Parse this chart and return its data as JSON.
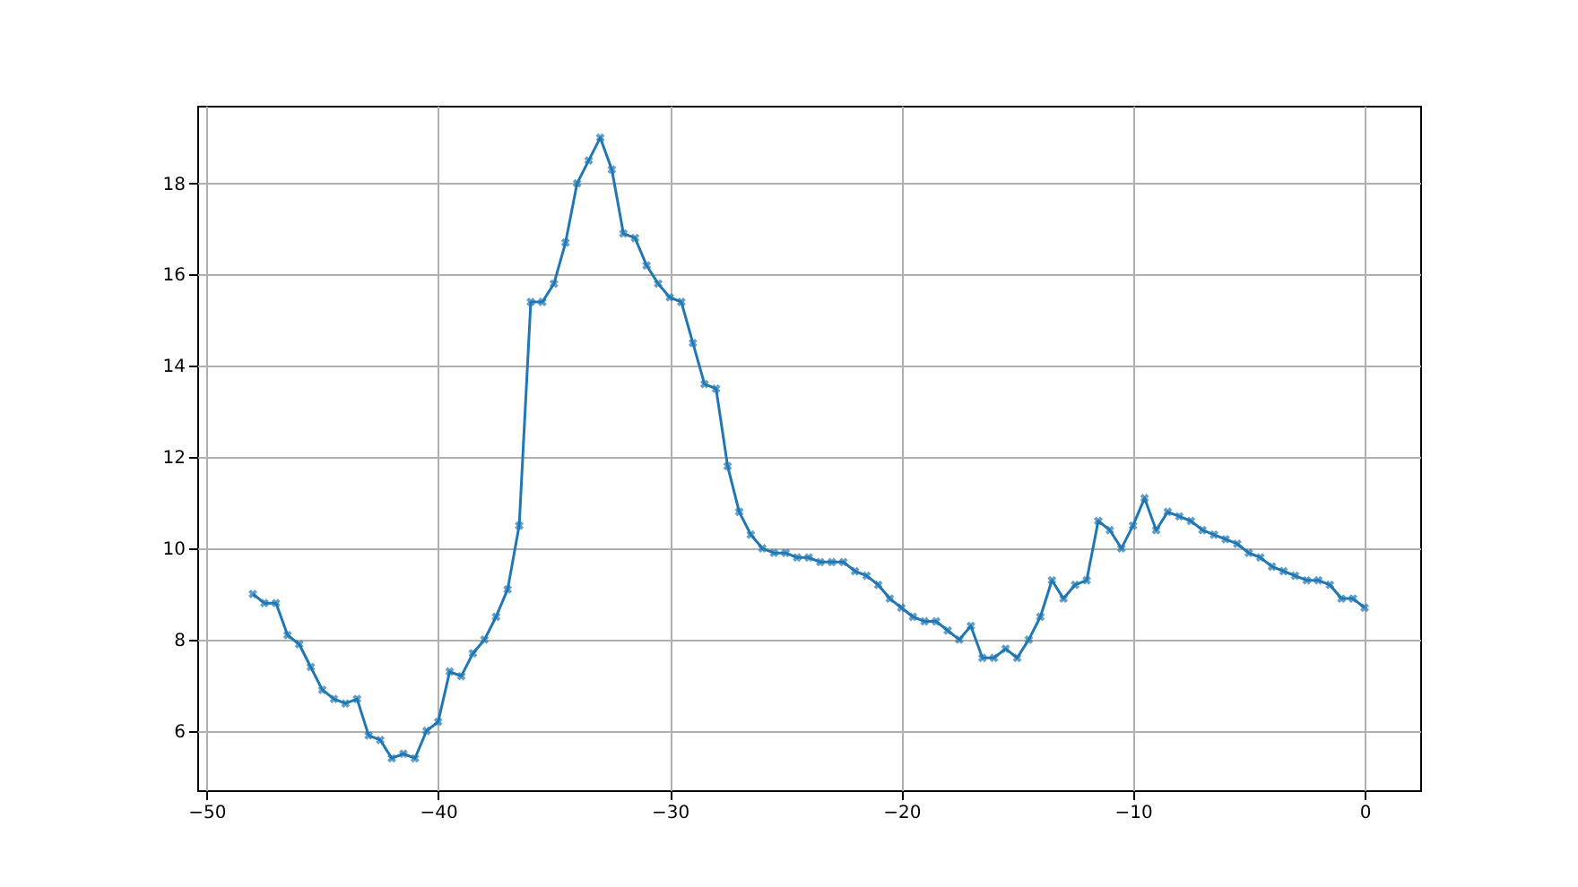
{
  "chart_data": {
    "type": "line",
    "x": [
      -48,
      -47.5,
      -47,
      -46.5,
      -46,
      -45.5,
      -45,
      -44.5,
      -44,
      -43.5,
      -43,
      -42.5,
      -42,
      -41.5,
      -41,
      -40.5,
      -40,
      -39.5,
      -39,
      -38.5,
      -38,
      -37.5,
      -37,
      -36.5,
      -36,
      -35.5,
      -35,
      -34.5,
      -34,
      -33.5,
      -33,
      -32.5,
      -32,
      -31.5,
      -31,
      -30.5,
      -30,
      -29.5,
      -29,
      -28.5,
      -28,
      -27.5,
      -27,
      -26.5,
      -26,
      -25.5,
      -25,
      -24.5,
      -24,
      -23.5,
      -23,
      -22.5,
      -22,
      -21.5,
      -21,
      -20.5,
      -20,
      -19.5,
      -19,
      -18.5,
      -18,
      -17.5,
      -17,
      -16.5,
      -16,
      -15.5,
      -15,
      -14.5,
      -14,
      -13.5,
      -13,
      -12.5,
      -12,
      -11.5,
      -11,
      -10.5,
      -10,
      -9.5,
      -9,
      -8.5,
      -8,
      -7.5,
      -7,
      -6.5,
      -6,
      -5.5,
      -5,
      -4.5,
      -4,
      -3.5,
      -3,
      -2.5,
      -2,
      -1.5,
      -1,
      -0.5,
      0
    ],
    "series": [
      {
        "color": "#1f77b4",
        "values": [
          9.0,
          8.8,
          8.8,
          8.1,
          7.9,
          7.4,
          6.9,
          6.7,
          6.6,
          6.7,
          5.9,
          5.8,
          5.4,
          5.5,
          5.4,
          6.0,
          6.2,
          7.3,
          7.2,
          7.7,
          8.0,
          8.5,
          9.1,
          10.5,
          15.4,
          15.4,
          15.8,
          16.7,
          18.0,
          18.5,
          19.0,
          18.3,
          16.9,
          16.8,
          16.2,
          15.8,
          15.5,
          15.4,
          14.5,
          13.6,
          13.5,
          11.8,
          10.8,
          10.3,
          10.0,
          9.9,
          9.9,
          9.8,
          9.8,
          9.7,
          9.7,
          9.7,
          9.5,
          9.4,
          9.2,
          8.9,
          8.7,
          8.5,
          8.4,
          8.4,
          8.2,
          8.0,
          8.3,
          7.6,
          7.6,
          7.8,
          7.6,
          8.0,
          8.5,
          9.3,
          8.9,
          9.2,
          9.3,
          10.6,
          10.4,
          10.0,
          10.5,
          11.1,
          10.4,
          10.8,
          10.7,
          10.6,
          10.4,
          10.3,
          10.2,
          10.1,
          9.9,
          9.8,
          9.6,
          9.5,
          9.4,
          9.3,
          9.3,
          9.2,
          8.9,
          8.9,
          8.7
        ]
      }
    ],
    "xlim": [
      -50.4,
      2.4
    ],
    "xticks": [
      -50,
      -40,
      -30,
      -20,
      -10,
      0
    ],
    "ylim": [
      4.7,
      19.7
    ],
    "yticks": [
      6,
      8,
      10,
      12,
      14,
      16,
      18
    ],
    "grid": true,
    "marker": "cross",
    "line_style": "solid"
  }
}
